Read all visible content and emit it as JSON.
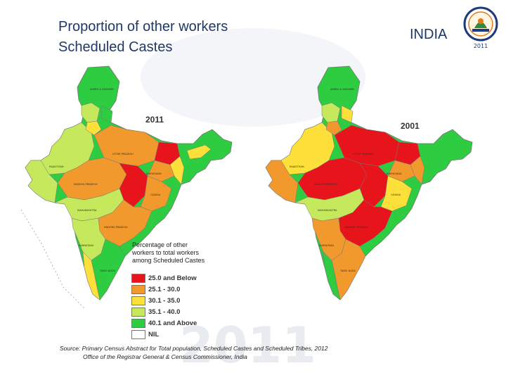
{
  "title": {
    "line1": "Proportion of other workers",
    "line2": "Scheduled Castes"
  },
  "country": "INDIA",
  "logo": {
    "icon": "census-emblem-icon",
    "year": "2011"
  },
  "maps": [
    {
      "year": "2011"
    },
    {
      "year": "2001"
    }
  ],
  "legend": {
    "title": "Percentage of other workers to total workers among Scheduled Castes",
    "items": [
      {
        "label": "25.0 and Below",
        "color": "#e8141c"
      },
      {
        "label": "25.1 - 30.0",
        "color": "#f2992e"
      },
      {
        "label": "30.1 - 35.0",
        "color": "#fde03a"
      },
      {
        "label": "35.1 - 40.0",
        "color": "#c6e85c"
      },
      {
        "label": "40.1 and Above",
        "color": "#2ecc40"
      },
      {
        "label": "NIL",
        "color": "#ffffff"
      }
    ]
  },
  "watermark_text": "2011",
  "source": {
    "line1": "Source: Primary Census Abstract for Total population, Scheduled Castes and Scheduled Tribes, 2012",
    "line2": "Office of the Registrar General & Census Commissioner, India"
  }
}
